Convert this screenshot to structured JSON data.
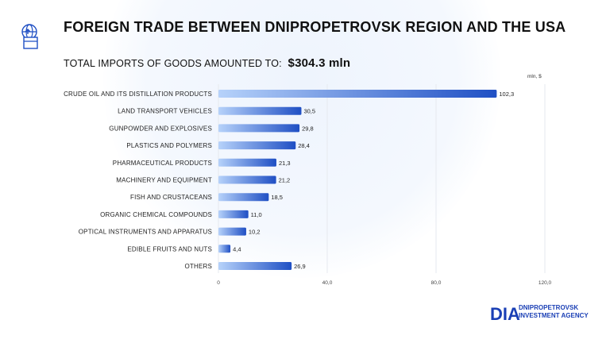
{
  "header": {
    "title": "FOREIGN TRADE BETWEEN DNIPROPETROVSK REGION AND THE USA",
    "subtitle_prefix": "TOTAL IMPORTS OF GOODS AMOUNTED TO:",
    "subtitle_total": "$304.3 mln",
    "icon": "globe-box-icon"
  },
  "chart_data": {
    "type": "bar",
    "orientation": "horizontal",
    "unit_label": "mln, $",
    "categories": [
      "CRUDE OIL AND ITS DISTILLATION PRODUCTS",
      "LAND TRANSPORT VEHICLES",
      "GUNPOWDER AND EXPLOSIVES",
      "PLASTICS AND POLYMERS",
      "PHARMACEUTICAL PRODUCTS",
      "MACHINERY AND EQUIPMENT",
      "FISH AND CRUSTACEANS",
      "ORGANIC CHEMICAL COMPOUNDS",
      "OPTICAL INSTRUMENTS AND APPARATUS",
      "EDIBLE FRUITS AND NUTS",
      "OTHERS"
    ],
    "values": [
      102.3,
      30.5,
      29.8,
      28.4,
      21.3,
      21.2,
      18.5,
      11.0,
      10.2,
      4.4,
      26.9
    ],
    "value_labels": [
      "102,3",
      "30,5",
      "29,8",
      "28,4",
      "21,3",
      "21,2",
      "18,5",
      "11,0",
      "10,2",
      "4,4",
      "26,9"
    ],
    "xlim": [
      0,
      120
    ],
    "xticks": [
      0,
      40,
      80,
      120
    ],
    "xtick_labels": [
      "0",
      "40,0",
      "80,0",
      "120,0"
    ],
    "grid": true,
    "colors": {
      "bar_start": "#b6d2fa",
      "bar_end": "#1f4fc4",
      "grid": "#e6e9ef"
    }
  },
  "footer": {
    "logo_mark": "DIA",
    "logo_line1": "DNIPROPETROVSK",
    "logo_line2": "INVESTMENT AGENCY",
    "logo_color": "#1a3fb5"
  }
}
